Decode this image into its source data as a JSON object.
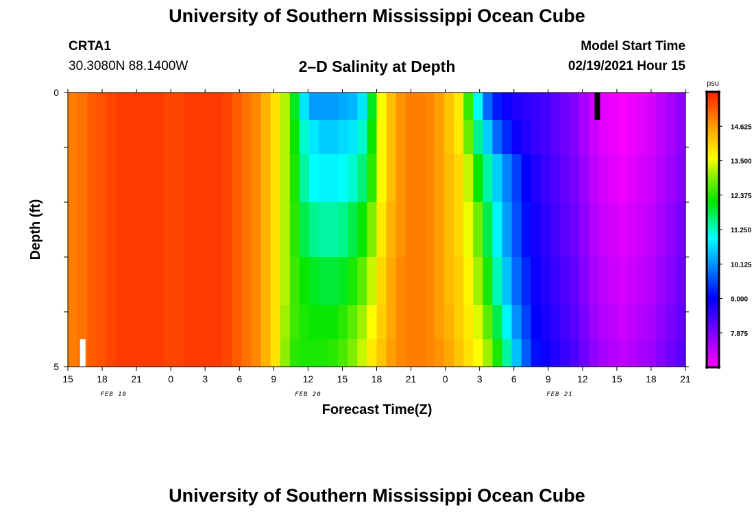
{
  "header": {
    "title": "University of Southern Mississippi Ocean Cube",
    "station": "CRTA1",
    "coords": "30.3080N 88.1400W",
    "subtitle": "2–D Salinity at Depth",
    "model_start_label": "Model Start Time",
    "model_start_time": "02/19/2021 Hour 15"
  },
  "footer": {
    "title": "University of Southern Mississippi Ocean Cube"
  },
  "chart_data": {
    "type": "heatmap",
    "xlabel": "Forecast Time(Z)",
    "ylabel": "Depth (ft)",
    "ylim": [
      0,
      5
    ],
    "y_ticks": [
      0,
      5
    ],
    "x_hours": [
      0,
      3,
      6,
      9,
      12,
      15,
      18,
      21,
      24,
      27,
      30,
      33,
      36,
      39,
      42,
      45,
      48,
      51,
      54
    ],
    "x_tick_labels": [
      "15",
      "18",
      "21",
      "0",
      "3",
      "6",
      "9",
      "12",
      "15",
      "18",
      "21",
      "0",
      "3",
      "6",
      "9",
      "12",
      "15",
      "18",
      "21"
    ],
    "date_labels": [
      {
        "label": "FEB 19",
        "hour": 4
      },
      {
        "label": "FEB 20",
        "hour": 21
      },
      {
        "label": "FEB 21",
        "hour": 43
      }
    ],
    "colorbar": {
      "unit": "psu",
      "min": 6.75,
      "max": 15.75,
      "ticks": [
        "14.625",
        "13.500",
        "12.375",
        "11.250",
        "10.125",
        "9.000",
        "7.875"
      ],
      "tick_values": [
        14.625,
        13.5,
        12.375,
        11.25,
        10.125,
        9.0,
        7.875
      ]
    },
    "colors": {
      "max": "#ff2000",
      "min": "#ff00ff"
    },
    "markers": [
      {
        "hour": 1,
        "depth_top": 4.5,
        "depth_bottom": 5,
        "color": "#ffffff"
      },
      {
        "hour": 46,
        "depth_top": 0,
        "depth_bottom": 0.5,
        "color": "#000000"
      }
    ],
    "depth_rows": [
      0.25,
      0.75,
      1.5,
      2.5,
      3.5,
      4.25,
      4.75
    ],
    "salinity": [
      [
        14.9,
        15.0,
        15.2,
        15.3,
        15.4,
        15.5,
        15.5,
        15.5,
        15.5,
        15.5,
        15.4,
        15.4,
        15.5,
        15.5,
        15.5,
        15.5,
        15.4,
        15.2,
        15.0,
        14.8,
        14.4,
        13.9,
        13.2,
        12.0,
        10.8,
        10.2,
        10.2,
        10.2,
        10.3,
        10.4,
        10.8,
        12.0,
        13.6,
        14.3,
        14.7,
        14.9,
        14.9,
        14.8,
        14.6,
        14.2,
        13.8,
        12.5,
        11.0,
        9.8,
        9.2,
        8.9,
        8.7,
        8.6,
        8.5,
        8.4,
        8.2,
        8.0,
        7.8,
        7.5,
        7.2,
        7.0,
        6.9,
        6.8,
        6.9,
        7.0,
        7.1,
        7.3,
        7.5,
        7.7
      ],
      [
        14.9,
        15.0,
        15.2,
        15.3,
        15.4,
        15.5,
        15.5,
        15.5,
        15.5,
        15.5,
        15.4,
        15.4,
        15.5,
        15.5,
        15.5,
        15.5,
        15.4,
        15.2,
        15.0,
        14.8,
        14.4,
        13.9,
        13.2,
        12.2,
        11.2,
        10.8,
        10.6,
        10.6,
        10.7,
        10.8,
        11.2,
        12.2,
        13.6,
        14.3,
        14.7,
        14.9,
        14.9,
        14.8,
        14.6,
        14.2,
        13.8,
        12.8,
        11.5,
        10.6,
        9.8,
        9.3,
        8.9,
        8.7,
        8.5,
        8.4,
        8.2,
        8.0,
        7.8,
        7.5,
        7.2,
        7.0,
        6.9,
        6.8,
        6.9,
        7.0,
        7.1,
        7.3,
        7.5,
        7.7
      ],
      [
        14.9,
        15.0,
        15.2,
        15.3,
        15.4,
        15.5,
        15.5,
        15.5,
        15.5,
        15.5,
        15.4,
        15.4,
        15.5,
        15.5,
        15.5,
        15.5,
        15.4,
        15.2,
        15.0,
        14.8,
        14.4,
        13.9,
        13.2,
        12.3,
        11.4,
        11.0,
        10.9,
        10.9,
        11.0,
        11.2,
        11.6,
        12.4,
        13.6,
        14.3,
        14.7,
        14.9,
        14.9,
        14.8,
        14.6,
        14.3,
        14.0,
        13.3,
        12.2,
        11.4,
        10.6,
        10.0,
        9.5,
        9.0,
        8.7,
        8.5,
        8.3,
        8.1,
        7.9,
        7.6,
        7.3,
        7.1,
        7.0,
        6.9,
        7.0,
        7.1,
        7.2,
        7.4,
        7.6,
        7.8
      ],
      [
        14.9,
        15.0,
        15.2,
        15.3,
        15.4,
        15.5,
        15.5,
        15.5,
        15.5,
        15.5,
        15.4,
        15.4,
        15.5,
        15.5,
        15.5,
        15.5,
        15.4,
        15.2,
        15.0,
        14.8,
        14.4,
        13.9,
        13.2,
        12.4,
        11.8,
        11.5,
        11.4,
        11.4,
        11.5,
        11.8,
        12.2,
        12.9,
        13.8,
        14.4,
        14.7,
        14.9,
        14.9,
        14.8,
        14.6,
        14.3,
        14.0,
        13.5,
        12.8,
        11.8,
        10.9,
        10.2,
        9.6,
        9.1,
        8.8,
        8.6,
        8.4,
        8.2,
        8.0,
        7.7,
        7.4,
        7.2,
        7.1,
        7.0,
        7.1,
        7.2,
        7.3,
        7.5,
        7.7,
        7.9
      ],
      [
        14.9,
        15.0,
        15.2,
        15.3,
        15.4,
        15.5,
        15.5,
        15.5,
        15.5,
        15.5,
        15.4,
        15.4,
        15.5,
        15.5,
        15.5,
        15.5,
        15.4,
        15.2,
        15.0,
        14.8,
        14.4,
        13.9,
        13.2,
        12.5,
        12.2,
        12.0,
        11.9,
        11.9,
        12.0,
        12.3,
        12.7,
        13.3,
        14.0,
        14.5,
        14.8,
        14.9,
        14.9,
        14.8,
        14.6,
        14.3,
        14.1,
        13.7,
        13.1,
        12.3,
        11.3,
        10.5,
        9.8,
        9.3,
        8.9,
        8.7,
        8.5,
        8.3,
        8.1,
        7.8,
        7.5,
        7.3,
        7.2,
        7.1,
        7.2,
        7.3,
        7.4,
        7.6,
        7.8,
        8.0
      ],
      [
        14.9,
        15.0,
        15.2,
        15.3,
        15.4,
        15.5,
        15.5,
        15.5,
        15.5,
        15.5,
        15.4,
        15.4,
        15.5,
        15.5,
        15.5,
        15.5,
        15.4,
        15.2,
        15.0,
        14.8,
        14.4,
        13.9,
        13.1,
        12.5,
        12.3,
        12.2,
        12.2,
        12.2,
        12.4,
        12.7,
        13.1,
        13.6,
        14.1,
        14.5,
        14.8,
        14.9,
        14.9,
        14.8,
        14.6,
        14.4,
        14.1,
        13.8,
        13.4,
        12.7,
        11.8,
        10.9,
        10.1,
        9.5,
        9.0,
        8.8,
        8.6,
        8.4,
        8.2,
        7.9,
        7.6,
        7.4,
        7.3,
        7.2,
        7.3,
        7.4,
        7.5,
        7.7,
        7.9,
        8.1
      ],
      [
        14.9,
        15.0,
        15.2,
        15.3,
        15.4,
        15.5,
        15.5,
        15.5,
        15.5,
        15.5,
        15.4,
        15.4,
        15.5,
        15.5,
        15.5,
        15.5,
        15.4,
        15.2,
        15.0,
        14.8,
        14.4,
        13.9,
        13.0,
        12.4,
        12.3,
        12.3,
        12.3,
        12.4,
        12.6,
        12.9,
        13.3,
        13.8,
        14.2,
        14.6,
        14.8,
        14.9,
        14.9,
        14.8,
        14.7,
        14.5,
        14.2,
        13.9,
        13.6,
        13.1,
        12.3,
        11.4,
        10.5,
        9.7,
        9.1,
        8.9,
        8.7,
        8.5,
        8.3,
        8.0,
        7.7,
        7.5,
        7.4,
        7.3,
        7.4,
        7.5,
        7.6,
        7.8,
        8.0,
        8.2
      ]
    ]
  }
}
